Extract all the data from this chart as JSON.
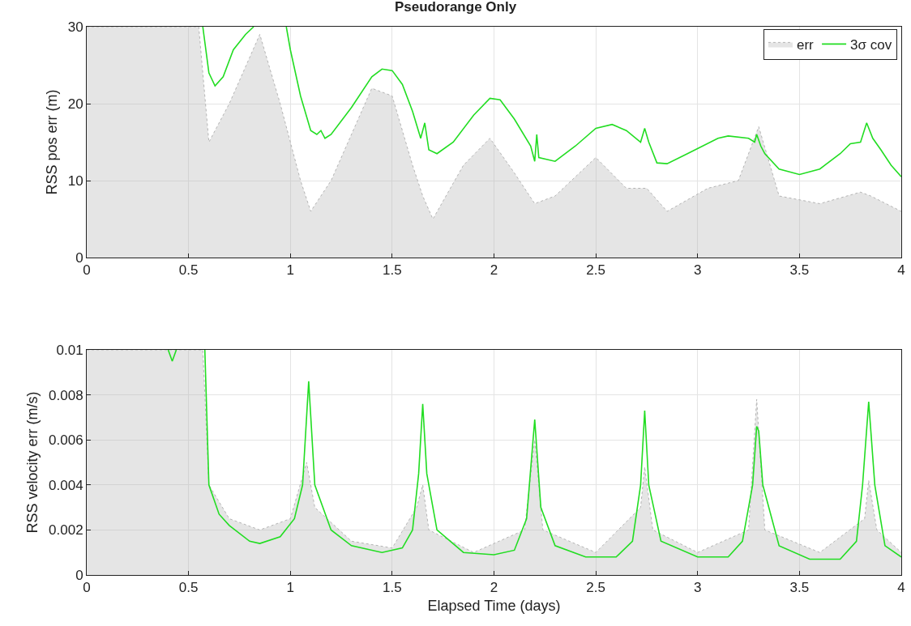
{
  "chart_data": [
    {
      "type": "line",
      "title": "Pseudorange Only",
      "ylabel": "RSS pos err (m)",
      "xlim": [
        0,
        4
      ],
      "xticks": [
        0,
        0.5,
        1,
        1.5,
        2,
        2.5,
        3,
        3.5,
        4
      ],
      "ylim": [
        0,
        30
      ],
      "yticks": [
        0,
        10,
        20,
        30
      ],
      "grid": true,
      "legend": "top right",
      "series": [
        {
          "name": "err",
          "type": "area",
          "color": "#b4b4b4",
          "line_style": "dotted",
          "x": [
            0,
            0.55,
            0.6,
            0.7,
            0.85,
            0.95,
            1.05,
            1.1,
            1.2,
            1.4,
            1.5,
            1.6,
            1.65,
            1.7,
            1.85,
            1.98,
            2.1,
            2.2,
            2.3,
            2.5,
            2.65,
            2.75,
            2.85,
            3.05,
            3.2,
            3.3,
            3.4,
            3.6,
            3.8,
            3.85,
            4
          ],
          "values": [
            30,
            30,
            15,
            20,
            29,
            20,
            10,
            6,
            10,
            22,
            21,
            12,
            8,
            5,
            12,
            15.5,
            11,
            7,
            8,
            13,
            9,
            9,
            6,
            9,
            10,
            17,
            8,
            7,
            8.5,
            8,
            6
          ]
        },
        {
          "name": "3σ cov",
          "color": "#22dd22",
          "line_style": "solid",
          "x": [
            0.57,
            0.6,
            0.63,
            0.67,
            0.72,
            0.78,
            0.82,
            0.9,
            0.98,
            1.0,
            1.05,
            1.1,
            1.13,
            1.15,
            1.17,
            1.2,
            1.3,
            1.4,
            1.45,
            1.5,
            1.55,
            1.6,
            1.64,
            1.66,
            1.68,
            1.72,
            1.8,
            1.9,
            1.98,
            2.03,
            2.1,
            2.18,
            2.2,
            2.21,
            2.22,
            2.3,
            2.4,
            2.5,
            2.58,
            2.65,
            2.72,
            2.74,
            2.76,
            2.8,
            2.85,
            2.95,
            3.1,
            3.15,
            3.25,
            3.28,
            3.29,
            3.31,
            3.33,
            3.4,
            3.5,
            3.6,
            3.7,
            3.75,
            3.8,
            3.83,
            3.86,
            3.9,
            3.95,
            4.0
          ],
          "values": [
            30,
            24,
            22.3,
            23.5,
            27,
            29,
            30,
            null,
            30,
            27,
            21,
            16.5,
            16,
            16.5,
            15.5,
            16,
            19.5,
            23.5,
            24.5,
            24.3,
            22.5,
            19,
            15.5,
            17.5,
            14,
            13.5,
            15,
            18.5,
            20.7,
            20.5,
            18,
            14.5,
            12.5,
            16,
            13,
            12.5,
            14.5,
            16.8,
            17.3,
            16.5,
            15,
            16.8,
            15,
            12.3,
            12.2,
            13.5,
            15.5,
            15.8,
            15.5,
            15,
            16,
            14.5,
            13.5,
            11.5,
            10.8,
            11.5,
            13.5,
            14.8,
            15,
            17.5,
            15.5,
            14,
            12,
            10.5
          ]
        }
      ]
    },
    {
      "type": "line",
      "xlabel": "Elapsed Time (days)",
      "ylabel": "RSS velocity err (m/s)",
      "xlim": [
        0,
        4
      ],
      "xticks": [
        0,
        0.5,
        1,
        1.5,
        2,
        2.5,
        3,
        3.5,
        4
      ],
      "ylim": [
        0,
        0.01
      ],
      "yticks": [
        0,
        0.002,
        0.004,
        0.006,
        0.008,
        0.01
      ],
      "grid": true,
      "series": [
        {
          "type": "area",
          "color": "#b4b4b4",
          "line_style": "dotted",
          "x": [
            0,
            0.57,
            0.6,
            0.7,
            0.85,
            1.0,
            1.08,
            1.12,
            1.3,
            1.5,
            1.62,
            1.65,
            1.68,
            1.9,
            2.15,
            2.2,
            2.24,
            2.5,
            2.72,
            2.74,
            2.78,
            3.0,
            3.25,
            3.29,
            3.33,
            3.6,
            3.82,
            3.84,
            3.88,
            4.0
          ],
          "values": [
            0.01,
            0.01,
            0.004,
            0.0025,
            0.002,
            0.0025,
            0.005,
            0.003,
            0.0015,
            0.0012,
            0.003,
            0.004,
            0.002,
            0.001,
            0.002,
            0.006,
            0.002,
            0.001,
            0.003,
            0.0048,
            0.002,
            0.001,
            0.002,
            0.0078,
            0.002,
            0.001,
            0.0025,
            0.0042,
            0.002,
            0.001
          ]
        },
        {
          "color": "#22dd22",
          "line_style": "solid",
          "x": [
            0.4,
            0.42,
            0.44,
            0.5,
            0.58,
            0.6,
            0.65,
            0.7,
            0.8,
            0.85,
            0.95,
            1.02,
            1.06,
            1.09,
            1.12,
            1.2,
            1.3,
            1.45,
            1.55,
            1.6,
            1.63,
            1.65,
            1.67,
            1.72,
            1.85,
            2.0,
            2.1,
            2.16,
            2.2,
            2.23,
            2.3,
            2.45,
            2.6,
            2.68,
            2.72,
            2.74,
            2.76,
            2.82,
            3.0,
            3.15,
            3.22,
            3.27,
            3.29,
            3.3,
            3.32,
            3.4,
            3.55,
            3.7,
            3.78,
            3.81,
            3.84,
            3.87,
            3.92,
            4.0
          ],
          "values": [
            0.01,
            0.0095,
            0.01,
            null,
            0.01,
            0.004,
            0.0027,
            0.0022,
            0.0015,
            0.0014,
            0.0017,
            0.0025,
            0.004,
            0.0086,
            0.004,
            0.002,
            0.0013,
            0.001,
            0.0012,
            0.002,
            0.0045,
            0.0076,
            0.0045,
            0.002,
            0.001,
            0.0009,
            0.0011,
            0.0025,
            0.0069,
            0.003,
            0.0013,
            0.0008,
            0.0008,
            0.0015,
            0.004,
            0.0073,
            0.004,
            0.0015,
            0.0008,
            0.0008,
            0.0015,
            0.004,
            0.0066,
            0.0064,
            0.004,
            0.0013,
            0.0007,
            0.0007,
            0.0015,
            0.004,
            0.0077,
            0.004,
            0.0013,
            0.0008
          ]
        }
      ]
    }
  ]
}
